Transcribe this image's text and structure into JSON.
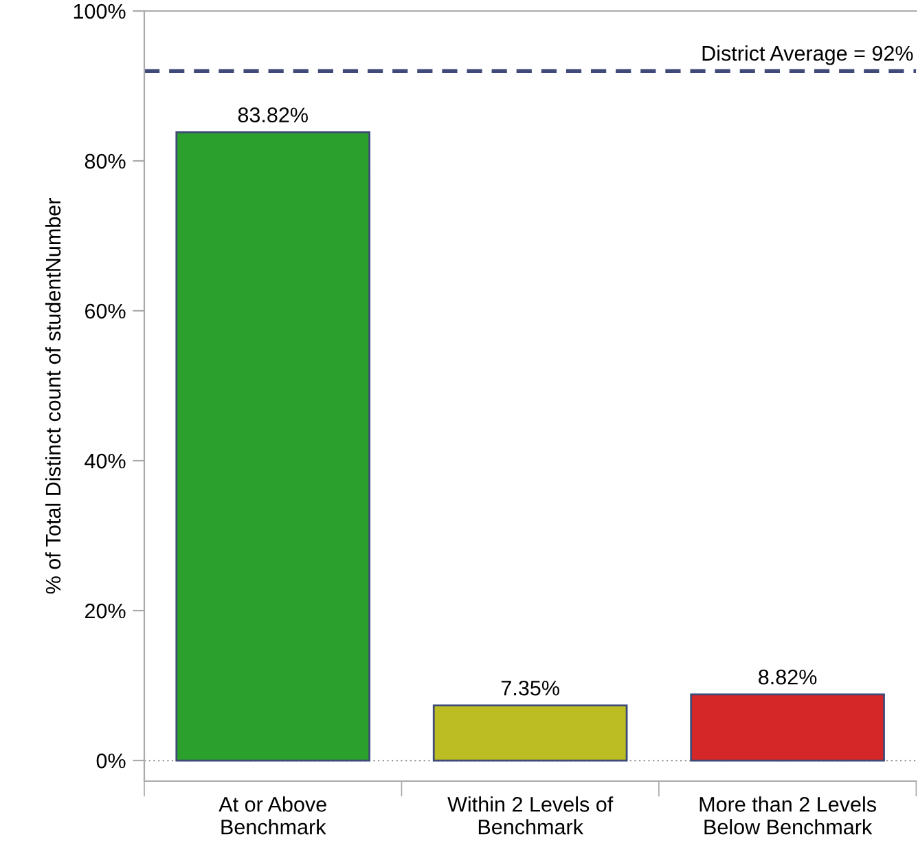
{
  "chart_data": {
    "type": "bar",
    "ylabel": "% of Total Distinct count of studentNumber",
    "categories": [
      "At or Above\nBenchmark",
      "Within 2 Levels of\nBenchmark",
      "More than 2 Levels\nBelow Benchmark"
    ],
    "values": [
      83.82,
      7.35,
      8.82
    ],
    "colors": [
      "#2ca02c",
      "#bcbd22",
      "#d62728"
    ],
    "value_labels": [
      "83.82%",
      "7.35%",
      "8.82%"
    ],
    "ylim": [
      -2.75,
      100
    ],
    "yticks": [
      {
        "value": 0,
        "label": "0%"
      },
      {
        "value": 20,
        "label": "20%"
      },
      {
        "value": 40,
        "label": "40%"
      },
      {
        "value": 60,
        "label": "60%"
      },
      {
        "value": 80,
        "label": "80%"
      },
      {
        "value": 100,
        "label": "100%"
      }
    ],
    "ref_lines": [
      {
        "axis": "y",
        "value": 92,
        "label": "District Average = 92%",
        "color": "#3f4a78",
        "line_style": "dashed"
      },
      {
        "axis": "y",
        "value": 0,
        "color": "#999999",
        "line_style": "dotted"
      }
    ],
    "grid": false,
    "legend": false
  }
}
